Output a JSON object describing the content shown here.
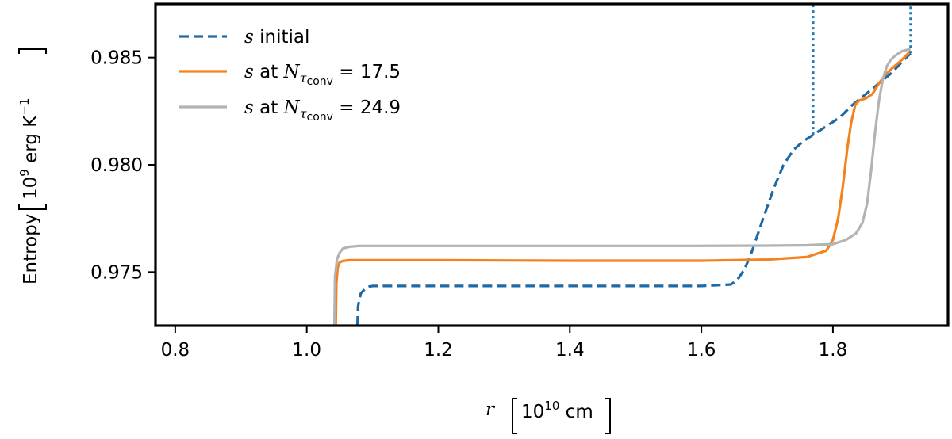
{
  "chart_data": {
    "type": "line",
    "title": "",
    "xlabel": "r",
    "xlabel_unit": "10^10 cm",
    "ylabel": "Entropy",
    "ylabel_unit": "10^9 erg K^-1",
    "xlim": [
      0.77,
      1.975
    ],
    "ylim": [
      0.9725,
      0.9875
    ],
    "xticks": [
      0.8,
      1.0,
      1.2,
      1.4,
      1.6,
      1.8
    ],
    "xtick_labels": [
      "0.8",
      "1.0",
      "1.2",
      "1.4",
      "1.6",
      "1.8"
    ],
    "yticks": [
      0.975,
      0.98,
      0.985
    ],
    "ytick_labels": [
      "0.975",
      "0.980",
      "0.985"
    ],
    "grid": false,
    "legend_position": "top-left",
    "series": [
      {
        "name": "s initial",
        "style": "dashed",
        "color": "#1f6aa5",
        "x": [
          1.077,
          1.078,
          1.082,
          1.088,
          1.095,
          1.1,
          1.2,
          1.4,
          1.6,
          1.645,
          1.655,
          1.665,
          1.675,
          1.685,
          1.695,
          1.71,
          1.725,
          1.74,
          1.755,
          1.77,
          1.79,
          1.81,
          1.83,
          1.85,
          1.87,
          1.89,
          1.905,
          1.918
        ],
        "y": [
          0.9725,
          0.9734,
          0.974,
          0.9742,
          0.97432,
          0.97435,
          0.97435,
          0.97435,
          0.97435,
          0.97442,
          0.97465,
          0.9751,
          0.9758,
          0.9767,
          0.9776,
          0.9789,
          0.98,
          0.9807,
          0.9811,
          0.9814,
          0.9818,
          0.9822,
          0.9828,
          0.9833,
          0.9838,
          0.9843,
          0.9848,
          0.9852
        ]
      },
      {
        "name": "s at N_τconv = 17.5",
        "style": "solid",
        "color": "#f5821f",
        "x": [
          1.044,
          1.045,
          1.047,
          1.05,
          1.055,
          1.065,
          1.2,
          1.4,
          1.6,
          1.7,
          1.76,
          1.79,
          1.8,
          1.808,
          1.815,
          1.822,
          1.828,
          1.834,
          1.84,
          1.85,
          1.86,
          1.87,
          1.88,
          1.89,
          1.905,
          1.918
        ],
        "y": [
          0.9725,
          0.9745,
          0.9752,
          0.97545,
          0.97552,
          0.97555,
          0.97555,
          0.97553,
          0.97553,
          0.97558,
          0.9757,
          0.976,
          0.9765,
          0.9775,
          0.979,
          0.9808,
          0.982,
          0.9828,
          0.983,
          0.9831,
          0.9833,
          0.9838,
          0.9842,
          0.9845,
          0.9849,
          0.9853
        ]
      },
      {
        "name": "s at N_τconv = 24.9",
        "style": "solid",
        "color": "#b3b3b3",
        "x": [
          1.042,
          1.043,
          1.046,
          1.05,
          1.055,
          1.065,
          1.08,
          1.2,
          1.4,
          1.6,
          1.7,
          1.76,
          1.8,
          1.82,
          1.835,
          1.845,
          1.852,
          1.858,
          1.864,
          1.87,
          1.876,
          1.882,
          1.888,
          1.895,
          1.905,
          1.918
        ],
        "y": [
          0.9725,
          0.9748,
          0.9756,
          0.9759,
          0.9761,
          0.97618,
          0.97622,
          0.97622,
          0.97622,
          0.97622,
          0.97623,
          0.97625,
          0.9763,
          0.9765,
          0.9768,
          0.9773,
          0.9782,
          0.9797,
          0.9815,
          0.983,
          0.984,
          0.9846,
          0.9849,
          0.9851,
          0.9853,
          0.9854
        ]
      }
    ],
    "vertical_lines": [
      {
        "x": 1.77,
        "y_from": 0.9814,
        "y_to": 0.9875,
        "style": "dotted",
        "color": "#1f77b4"
      },
      {
        "x": 1.918,
        "y_from": 0.9852,
        "y_to": 0.9875,
        "style": "dotted",
        "color": "#1f77b4"
      }
    ]
  }
}
